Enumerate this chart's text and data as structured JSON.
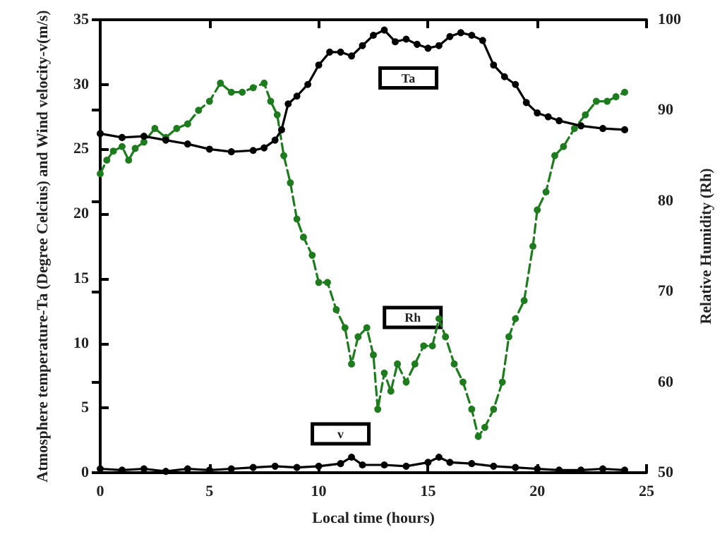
{
  "chart_data": {
    "type": "line",
    "xlabel": "Local time (hours)",
    "ylabel": "Atmosphere temperature-Ta (Degree Celcius) and Wind velocity-v(m/s)",
    "y2label": "Relative Humidity (Rh)",
    "xlim": [
      0,
      25
    ],
    "xticks": [
      0,
      5,
      10,
      15,
      20,
      25
    ],
    "ylim": [
      0,
      35
    ],
    "yticks": [
      0,
      5,
      10,
      15,
      20,
      25,
      30,
      35
    ],
    "y2lim": [
      50,
      100
    ],
    "y2ticks": [
      50,
      60,
      70,
      80,
      90,
      100
    ],
    "grid": false,
    "legend": false,
    "marker": "circle",
    "series": [
      {
        "color": "#000000",
        "line_style": "solid",
        "x": [
          0,
          1,
          2,
          3,
          4,
          5,
          6,
          7,
          7.5,
          8,
          8.3,
          8.6,
          9,
          9.5,
          10,
          10.5,
          11,
          11.5,
          12,
          12.5,
          13,
          13.5,
          14,
          14.5,
          15,
          15.5,
          16,
          16.5,
          17,
          17.5,
          18,
          18.5,
          19,
          19.5,
          20,
          20.5,
          21,
          22,
          23,
          24
        ],
        "values": [
          26.2,
          25.9,
          26,
          25.7,
          25.4,
          25,
          24.8,
          24.9,
          25.1,
          25.7,
          26.5,
          28.5,
          29.1,
          30,
          31.5,
          32.5,
          32.5,
          32.2,
          33,
          33.8,
          34.2,
          33.3,
          33.5,
          33.1,
          32.8,
          33,
          33.7,
          34,
          33.8,
          33.4,
          31.5,
          30.6,
          30,
          28.6,
          27.8,
          27.5,
          27.2,
          26.8,
          26.6,
          26.5
        ]
      },
      {
        "color": "#1e7b1e",
        "line_style": "dashed",
        "axis": "y2",
        "x": [
          0,
          0.3,
          0.6,
          1,
          1.3,
          1.6,
          2,
          2.5,
          3,
          3.5,
          4,
          4.5,
          5,
          5.5,
          6,
          6.5,
          7,
          7.5,
          7.8,
          8.1,
          8.4,
          8.7,
          9,
          9.3,
          9.7,
          10,
          10.4,
          10.8,
          11.2,
          11.5,
          11.8,
          12.2,
          12.5,
          12.7,
          13,
          13.3,
          13.6,
          14,
          14.4,
          14.8,
          15.2,
          15.5,
          15.8,
          16.2,
          16.6,
          17,
          17.3,
          17.6,
          18,
          18.4,
          18.7,
          19,
          19.4,
          19.8,
          20,
          20.4,
          20.8,
          21.2,
          21.7,
          22.2,
          22.7,
          23.2,
          23.6,
          24
        ],
        "values": [
          83,
          84.5,
          85.5,
          86,
          84.5,
          85.8,
          86.5,
          88,
          87,
          88,
          88.5,
          90,
          91,
          93,
          92,
          92,
          92.5,
          93,
          91,
          89.5,
          85,
          82,
          78,
          76,
          74,
          71,
          71,
          68,
          66,
          62,
          65,
          66,
          63,
          57,
          61,
          59,
          62,
          60,
          62,
          64,
          64,
          67,
          65,
          62,
          60,
          57,
          54,
          55,
          57,
          60,
          65,
          67,
          69,
          75,
          79,
          81,
          85,
          86,
          88,
          89.5,
          91,
          91,
          91.5,
          92
        ]
      },
      {
        "color": "#000000",
        "line_style": "solid",
        "x": [
          0,
          1,
          2,
          3,
          4,
          5,
          6,
          7,
          8,
          9,
          10,
          11,
          11.5,
          12,
          13,
          14,
          15,
          15.5,
          16,
          17,
          18,
          19,
          20,
          21,
          22,
          23,
          24
        ],
        "values": [
          0.3,
          0.2,
          0.3,
          0.1,
          0.3,
          0.2,
          0.3,
          0.4,
          0.5,
          0.4,
          0.5,
          0.7,
          1.2,
          0.6,
          0.6,
          0.5,
          0.8,
          1.2,
          0.8,
          0.7,
          0.5,
          0.4,
          0.3,
          0.2,
          0.2,
          0.3,
          0.2
        ]
      }
    ],
    "annotations": [
      {
        "text": "Ta",
        "x": 14.1,
        "y": 30.5
      },
      {
        "text": "Rh",
        "x": 14.3,
        "y": 12
      },
      {
        "text": "v",
        "x": 11,
        "y": 3
      }
    ]
  }
}
